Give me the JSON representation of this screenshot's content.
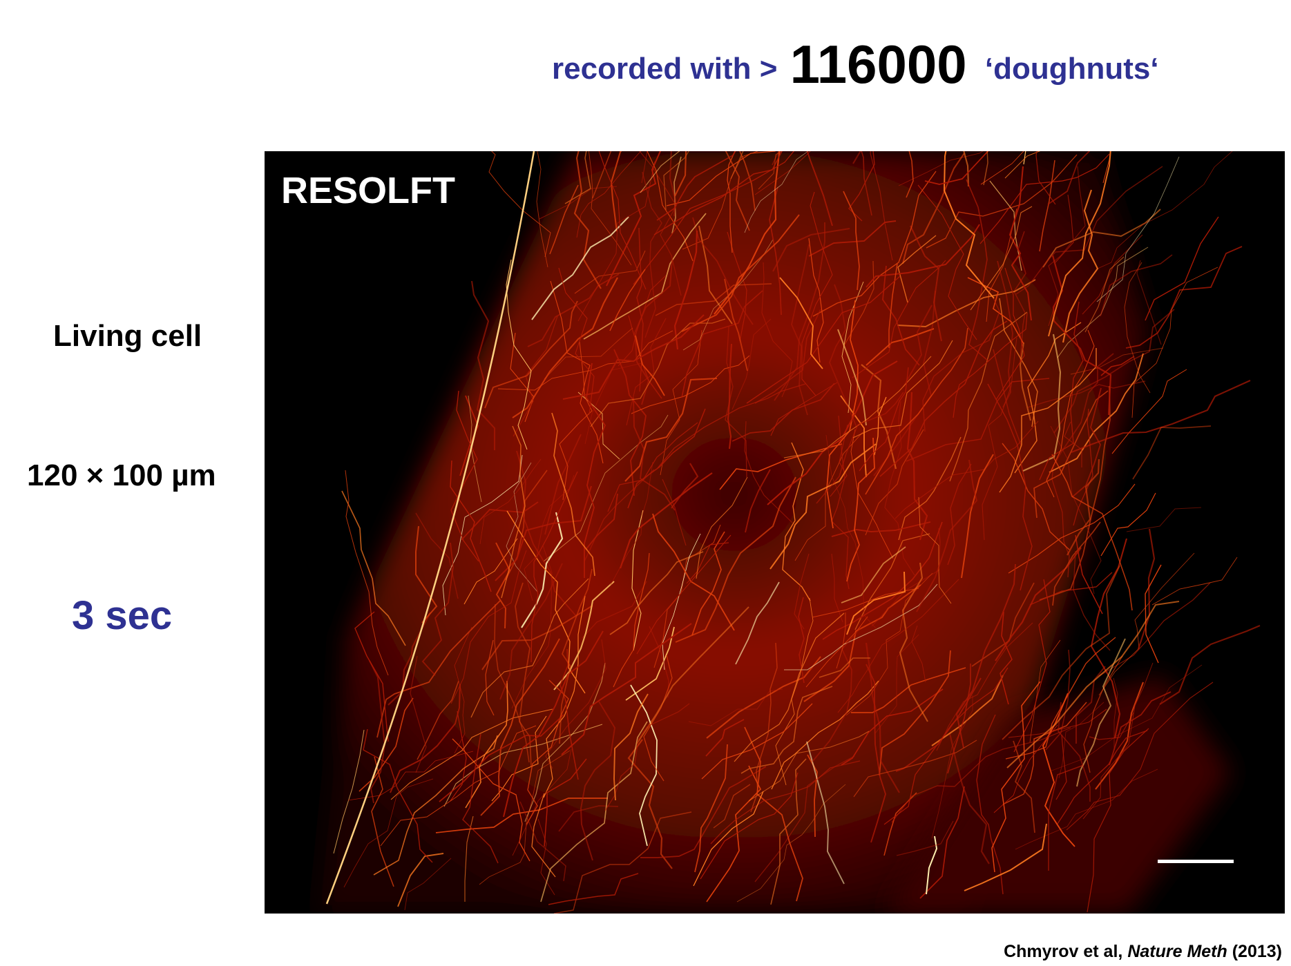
{
  "headline": {
    "prefix": "recorded with >",
    "count": "116000",
    "suffix": "‘doughnuts‘"
  },
  "side_labels": {
    "subject": "Living cell",
    "field_of_view": "120 × 100 µm",
    "duration": "3 sec"
  },
  "image": {
    "label": "RESOLFT",
    "colormap": [
      "#000000",
      "#5a0000",
      "#c0200a",
      "#ff6a10",
      "#ffe080"
    ]
  },
  "citation": {
    "authors": "Chmyrov et al,",
    "journal": "Nature Meth",
    "year": "(2013)"
  },
  "colors": {
    "accent": "#2e3192",
    "text": "#000000"
  }
}
